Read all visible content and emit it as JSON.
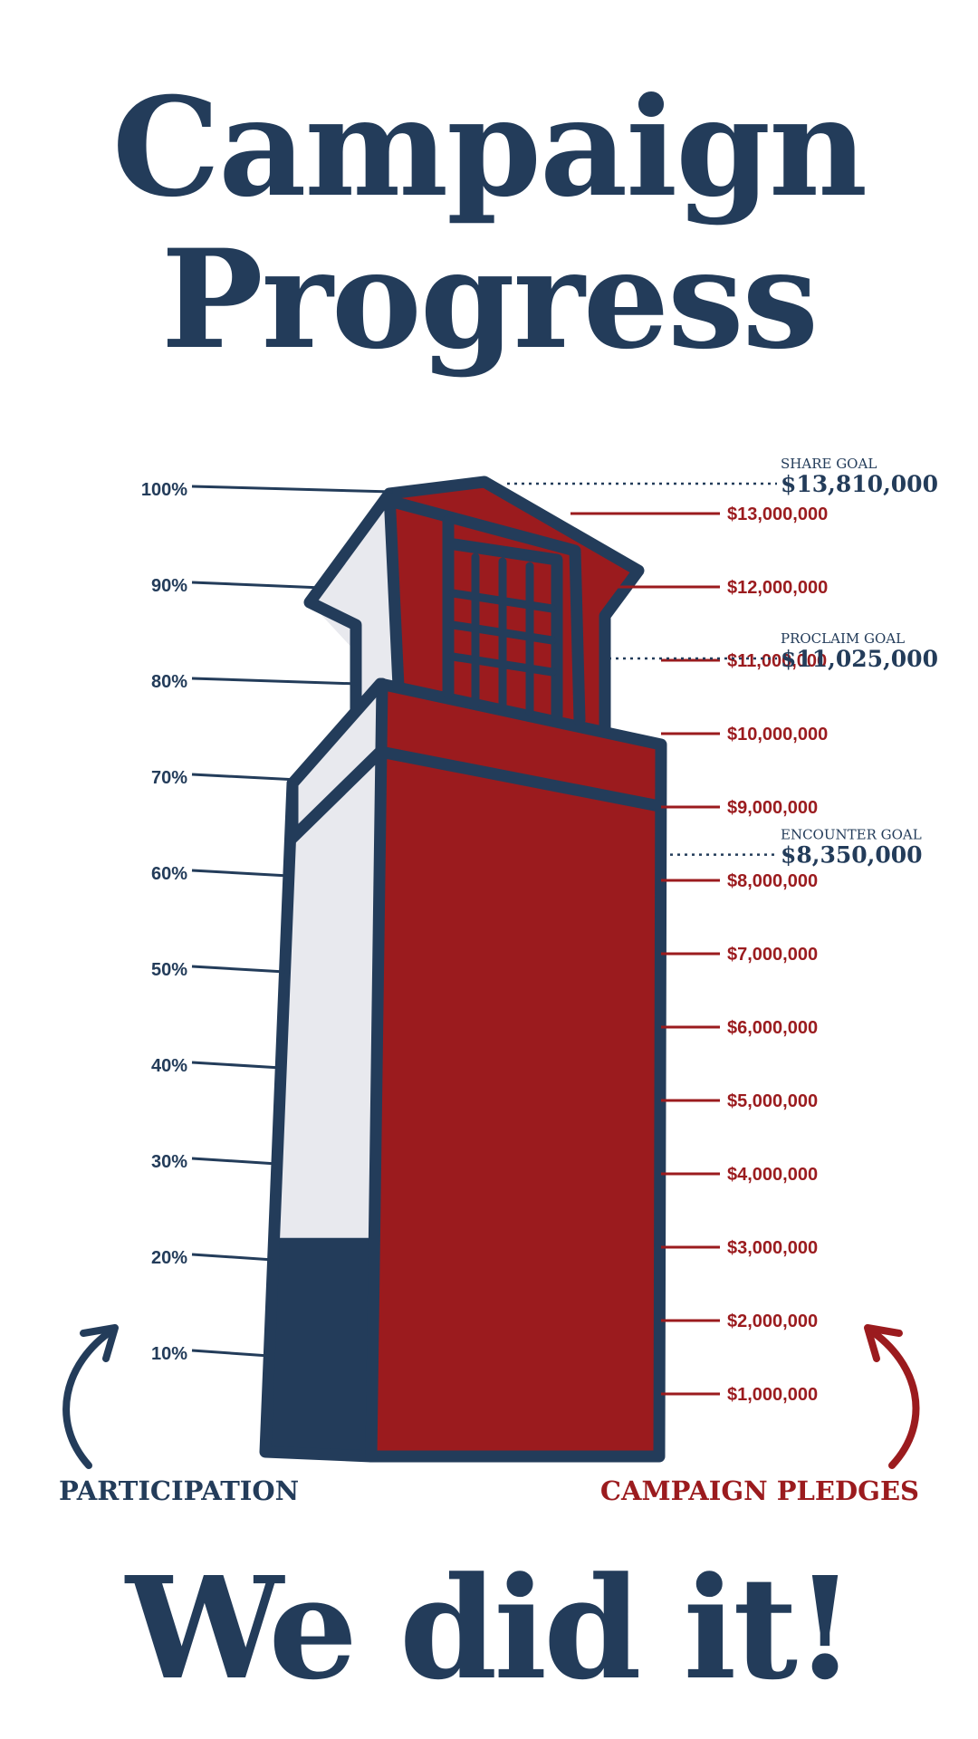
{
  "title": [
    "Campaign",
    "Progress"
  ],
  "footer": "We did it!",
  "colors": {
    "navy": "#233c5a",
    "red": "#9b1b1e",
    "light": "#e8e9ee"
  },
  "chart_data": {
    "type": "bar",
    "title": "Campaign Progress",
    "series": [
      {
        "name": "PARTICIPATION",
        "unit": "percent",
        "value": 22,
        "axis_min": 0,
        "axis_max": 100,
        "ticks": [
          {
            "value": 10,
            "label": "10%"
          },
          {
            "value": 20,
            "label": "20%"
          },
          {
            "value": 30,
            "label": "30%"
          },
          {
            "value": 40,
            "label": "40%"
          },
          {
            "value": 50,
            "label": "50%"
          },
          {
            "value": 60,
            "label": "60%"
          },
          {
            "value": 70,
            "label": "70%"
          },
          {
            "value": 80,
            "label": "80%"
          },
          {
            "value": 90,
            "label": "90%"
          },
          {
            "value": 100,
            "label": "100%"
          }
        ]
      },
      {
        "name": "CAMPAIGN PLEDGES",
        "unit": "USD",
        "value": 13810000,
        "axis_min": 0,
        "axis_max": 13810000,
        "ticks": [
          {
            "value": 1000000,
            "label": "$1,000,000"
          },
          {
            "value": 2000000,
            "label": "$2,000,000"
          },
          {
            "value": 3000000,
            "label": "$3,000,000"
          },
          {
            "value": 4000000,
            "label": "$4,000,000"
          },
          {
            "value": 5000000,
            "label": "$5,000,000"
          },
          {
            "value": 6000000,
            "label": "$6,000,000"
          },
          {
            "value": 7000000,
            "label": "$7,000,000"
          },
          {
            "value": 8000000,
            "label": "$8,000,000"
          },
          {
            "value": 9000000,
            "label": "$9,000,000"
          },
          {
            "value": 10000000,
            "label": "$10,000,000"
          },
          {
            "value": 11000000,
            "label": "$11,000,000"
          },
          {
            "value": 12000000,
            "label": "$12,000,000"
          },
          {
            "value": 13000000,
            "label": "$13,000,000"
          }
        ]
      }
    ],
    "goals": [
      {
        "label": "SHARE GOAL",
        "value": 13810000,
        "display": "$13,810,000"
      },
      {
        "label": "PROCLAIM GOAL",
        "value": 11025000,
        "display": "$11,025,000"
      },
      {
        "label": "ENCOUNTER GOAL",
        "value": 8350000,
        "display": "$8,350,000"
      }
    ]
  }
}
